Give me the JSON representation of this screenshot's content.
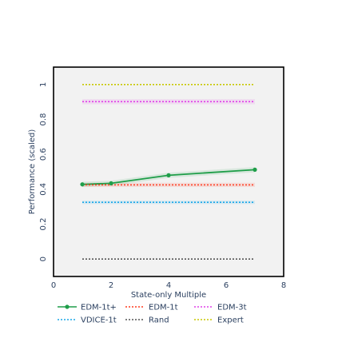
{
  "chart_data": {
    "type": "line",
    "title": "",
    "xlabel": "State-only Multiple",
    "ylabel": "Performance (scaled)",
    "xlim": [
      0,
      8
    ],
    "ylim": [
      -0.1,
      1.1
    ],
    "x_ticks": [
      0,
      2,
      4,
      6,
      8
    ],
    "y_ticks": [
      0,
      0.2,
      0.4,
      0.6,
      0.8,
      1
    ],
    "grid": false,
    "legend_position": "bottom",
    "series": [
      {
        "name": "EDM-1t+",
        "color": "#1f9e49",
        "style": "solid",
        "markers": true,
        "x": [
          1,
          2,
          4,
          7
        ],
        "y": [
          0.428,
          0.434,
          0.48,
          0.512
        ],
        "band": 0.015
      },
      {
        "name": "EDM-1t",
        "color": "#ff3b1f",
        "style": "dotted",
        "x": [
          1,
          7
        ],
        "y": [
          0.425,
          0.425
        ],
        "band": 0.012
      },
      {
        "name": "EDM-3t",
        "color": "#e040e8",
        "style": "dotted",
        "x": [
          1,
          7
        ],
        "y": [
          0.902,
          0.902
        ],
        "band": 0.015
      },
      {
        "name": "VDICE-1t",
        "color": "#1aa7e8",
        "style": "dotted",
        "x": [
          1,
          7
        ],
        "y": [
          0.325,
          0.325
        ],
        "band": 0.01
      },
      {
        "name": "Rand",
        "color": "#555555",
        "style": "dotted",
        "x": [
          1,
          7
        ],
        "y": [
          0.0,
          0.0
        ],
        "band": 0.0
      },
      {
        "name": "Expert",
        "color": "#c8c800",
        "style": "dotted",
        "x": [
          1,
          7
        ],
        "y": [
          1.0,
          1.0
        ],
        "band": 0.0
      }
    ]
  }
}
